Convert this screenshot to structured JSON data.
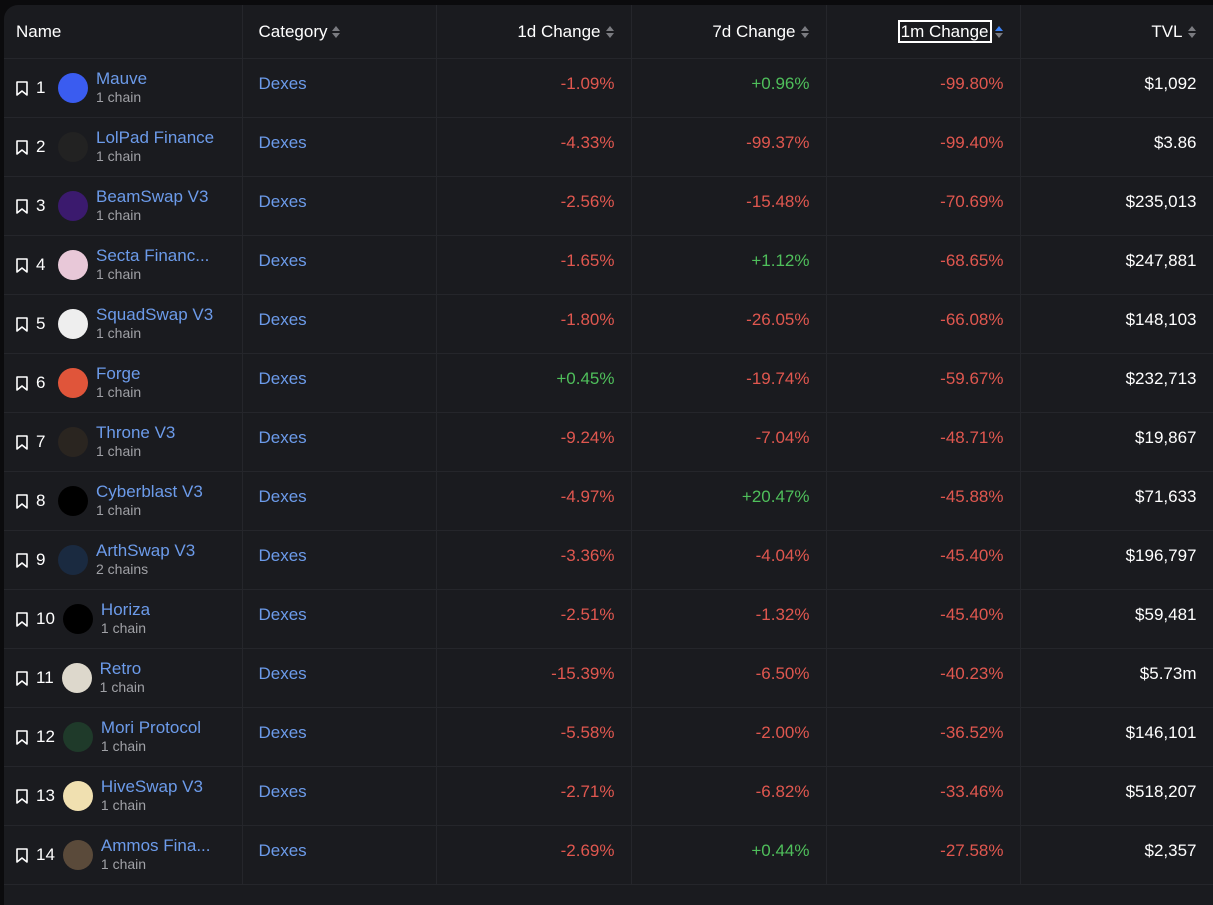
{
  "colors": {
    "negative": "#e0574f",
    "positive": "#4fbf5b",
    "link": "#6c9bea",
    "sort_active": "#3b82f6"
  },
  "header": {
    "name": "Name",
    "category": "Category",
    "change_1d": "1d Change",
    "change_7d": "7d Change",
    "change_1m": "1m Change",
    "tvl": "TVL",
    "active_sort": "1m Change ascending"
  },
  "rows": [
    {
      "rank": "1",
      "name": "Mauve",
      "chains": "1 chain",
      "category": "Dexes",
      "d1": "-1.09%",
      "d7": "+0.96%",
      "m1": "-99.80%",
      "tvl": "$1,092",
      "logo_color": "#3a5cf0",
      "logo_icon": "mauve-logo"
    },
    {
      "rank": "2",
      "name": "LolPad Finance",
      "chains": "1 chain",
      "category": "Dexes",
      "d1": "-4.33%",
      "d7": "-99.37%",
      "m1": "-99.40%",
      "tvl": "$3.86",
      "logo_color": "#222",
      "logo_icon": "lolpad-logo"
    },
    {
      "rank": "3",
      "name": "BeamSwap V3",
      "chains": "1 chain",
      "category": "Dexes",
      "d1": "-2.56%",
      "d7": "-15.48%",
      "m1": "-70.69%",
      "tvl": "$235,013",
      "logo_color": "#3b1a6e",
      "logo_icon": "beamswap-logo"
    },
    {
      "rank": "4",
      "name": "Secta Financ...",
      "chains": "1 chain",
      "category": "Dexes",
      "d1": "-1.65%",
      "d7": "+1.12%",
      "m1": "-68.65%",
      "tvl": "$247,881",
      "logo_color": "#e8c8d8",
      "logo_icon": "secta-logo"
    },
    {
      "rank": "5",
      "name": "SquadSwap V3",
      "chains": "1 chain",
      "category": "Dexes",
      "d1": "-1.80%",
      "d7": "-26.05%",
      "m1": "-66.08%",
      "tvl": "$148,103",
      "logo_color": "#eee",
      "logo_icon": "squadswap-logo"
    },
    {
      "rank": "6",
      "name": "Forge",
      "chains": "1 chain",
      "category": "Dexes",
      "d1": "+0.45%",
      "d7": "-19.74%",
      "m1": "-59.67%",
      "tvl": "$232,713",
      "logo_color": "#e0553a",
      "logo_icon": "forge-logo"
    },
    {
      "rank": "7",
      "name": "Throne V3",
      "chains": "1 chain",
      "category": "Dexes",
      "d1": "-9.24%",
      "d7": "-7.04%",
      "m1": "-48.71%",
      "tvl": "$19,867",
      "logo_color": "#2a2520",
      "logo_icon": "throne-logo"
    },
    {
      "rank": "8",
      "name": "Cyberblast V3",
      "chains": "1 chain",
      "category": "Dexes",
      "d1": "-4.97%",
      "d7": "+20.47%",
      "m1": "-45.88%",
      "tvl": "$71,633",
      "logo_color": "#000",
      "logo_icon": "cyberblast-logo"
    },
    {
      "rank": "9",
      "name": "ArthSwap V3",
      "chains": "2 chains",
      "category": "Dexes",
      "d1": "-3.36%",
      "d7": "-4.04%",
      "m1": "-45.40%",
      "tvl": "$196,797",
      "logo_color": "#1a2a40",
      "logo_icon": "arthswap-logo"
    },
    {
      "rank": "10",
      "name": "Horiza",
      "chains": "1 chain",
      "category": "Dexes",
      "d1": "-2.51%",
      "d7": "-1.32%",
      "m1": "-45.40%",
      "tvl": "$59,481",
      "logo_color": "#000",
      "logo_icon": "horiza-logo"
    },
    {
      "rank": "11",
      "name": "Retro",
      "chains": "1 chain",
      "category": "Dexes",
      "d1": "-15.39%",
      "d7": "-6.50%",
      "m1": "-40.23%",
      "tvl": "$5.73m",
      "logo_color": "#ddd8cc",
      "logo_icon": "retro-logo"
    },
    {
      "rank": "12",
      "name": "Mori Protocol",
      "chains": "1 chain",
      "category": "Dexes",
      "d1": "-5.58%",
      "d7": "-2.00%",
      "m1": "-36.52%",
      "tvl": "$146,101",
      "logo_color": "#1f3a2a",
      "logo_icon": "mori-logo"
    },
    {
      "rank": "13",
      "name": "HiveSwap V3",
      "chains": "1 chain",
      "category": "Dexes",
      "d1": "-2.71%",
      "d7": "-6.82%",
      "m1": "-33.46%",
      "tvl": "$518,207",
      "logo_color": "#f0e0b0",
      "logo_icon": "hiveswap-logo"
    },
    {
      "rank": "14",
      "name": "Ammos Fina...",
      "chains": "1 chain",
      "category": "Dexes",
      "d1": "-2.69%",
      "d7": "+0.44%",
      "m1": "-27.58%",
      "tvl": "$2,357",
      "logo_color": "#5a4a3a",
      "logo_icon": "ammos-logo"
    }
  ]
}
